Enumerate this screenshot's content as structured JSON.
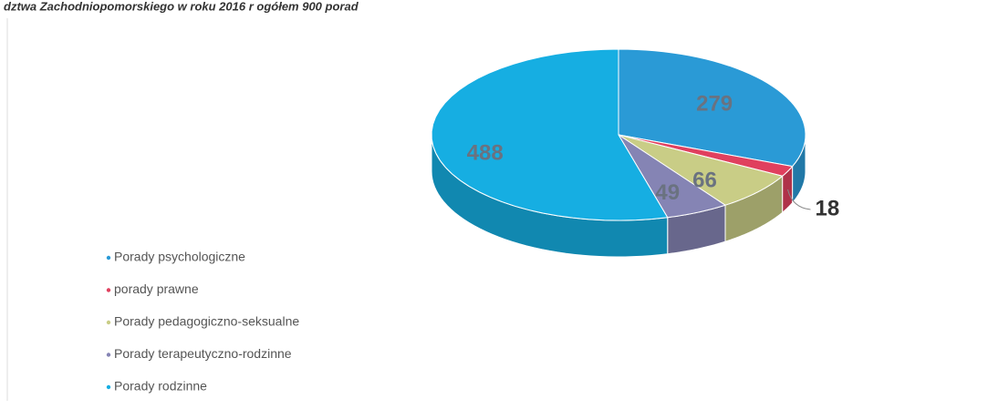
{
  "chart_data": {
    "type": "pie3d",
    "title": "dztwa Zachodniopomorskiego w roku 2016 r ogółem 900 porad",
    "categories": [
      "Porady psychologiczne",
      "porady prawne",
      "Porady pedagogiczno-seksualne",
      "Porady terapeutyczno-rodzinne",
      "Porady rodzinne"
    ],
    "values": [
      279,
      18,
      66,
      49,
      488
    ],
    "colors": [
      "#2a9ad6",
      "#e0405e",
      "#c9cd86",
      "#8584b4",
      "#16aee2"
    ],
    "legend": "left"
  }
}
